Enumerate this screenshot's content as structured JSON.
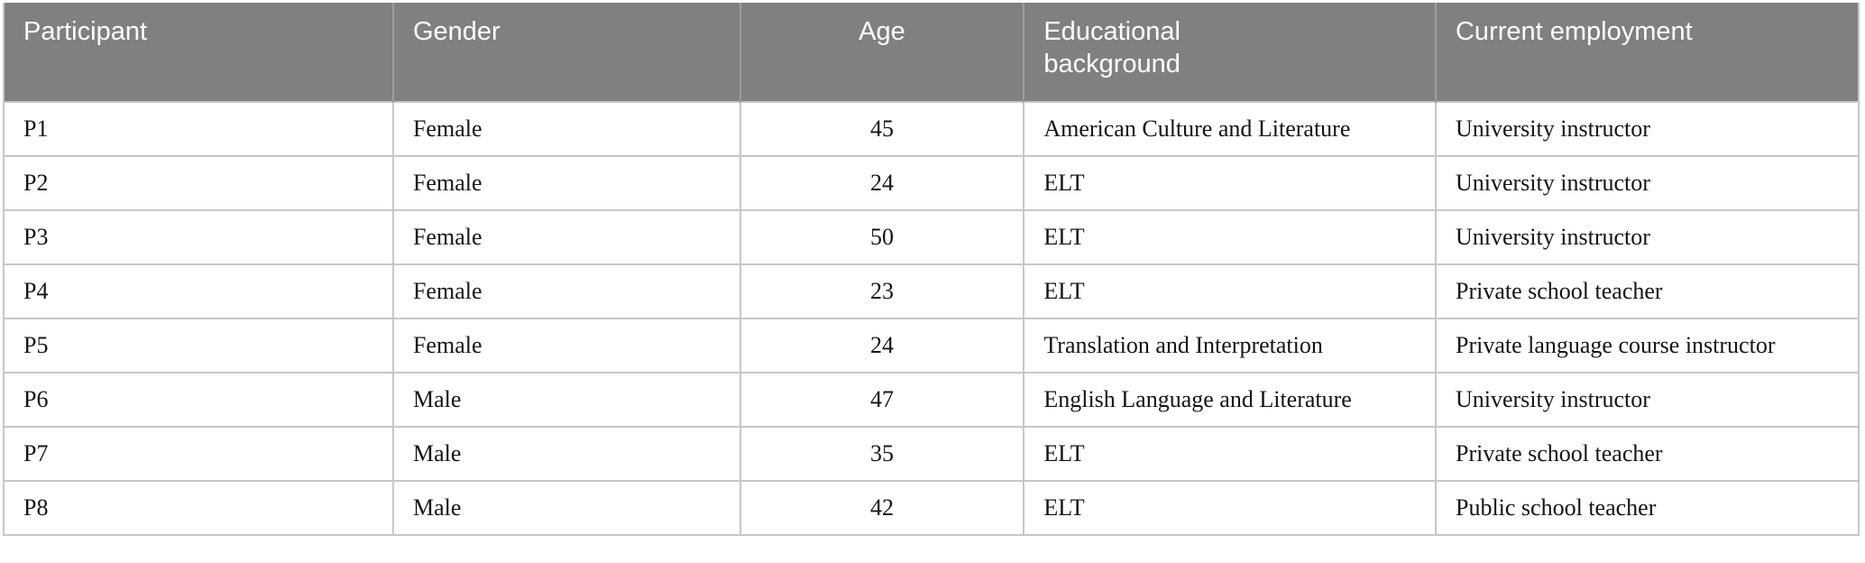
{
  "table": {
    "columns": [
      "Participant",
      "Gender",
      "Age",
      "Educational background",
      "Current employment"
    ],
    "column_keys": [
      "participant",
      "gender",
      "age",
      "educational-background",
      "current-employment"
    ],
    "rows": [
      [
        "P1",
        "Female",
        "45",
        "American Culture and Literature",
        "University instructor"
      ],
      [
        "P2",
        "Female",
        "24",
        "ELT",
        "University instructor"
      ],
      [
        "P3",
        "Female",
        "50",
        "ELT",
        "University instructor"
      ],
      [
        "P4",
        "Female",
        "23",
        "ELT",
        "Private school teacher"
      ],
      [
        "P5",
        "Female",
        "24",
        "Translation and Interpretation",
        "Private language course instructor"
      ],
      [
        "P6",
        "Male",
        "47",
        "English Language and Literature",
        "University instructor"
      ],
      [
        "P7",
        "Male",
        "35",
        "ELT",
        "Private school teacher"
      ],
      [
        "P8",
        "Male",
        "42",
        "ELT",
        "Public school teacher"
      ]
    ]
  },
  "colors": {
    "header_background": "#7f8080",
    "header_text": "#ffffff",
    "body_text": "#141414",
    "grid_border": "#c6c7c7",
    "header_divider": "#9d9e9e"
  }
}
